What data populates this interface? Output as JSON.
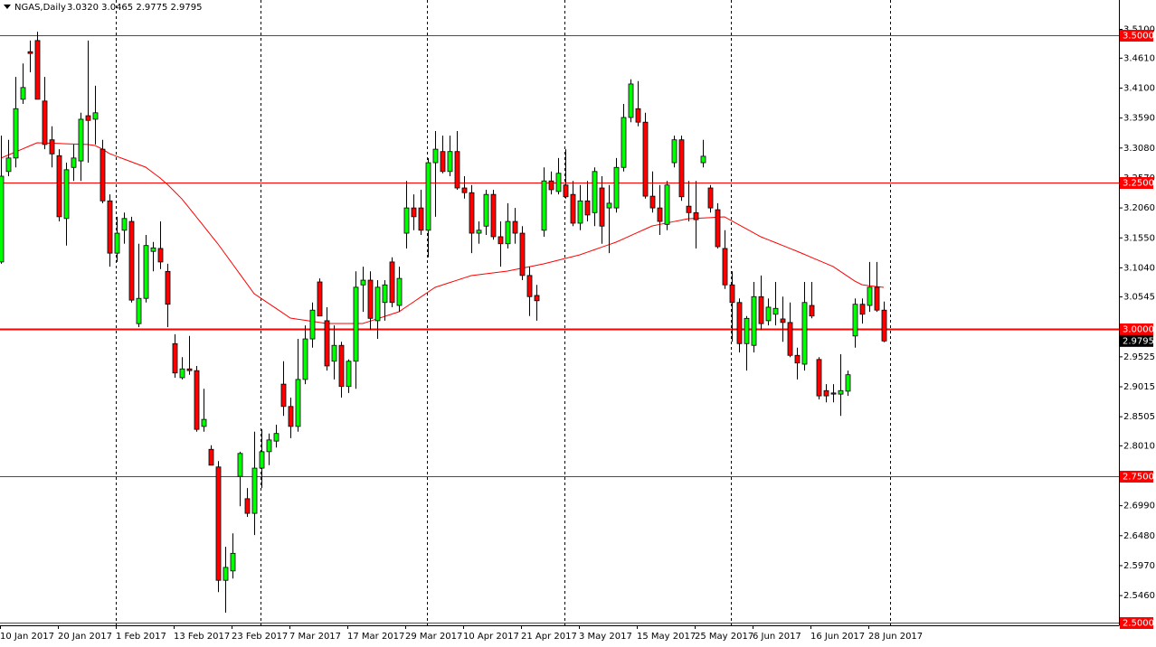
{
  "chart_data": {
    "type": "candlestick",
    "title": "NGAS,Daily",
    "ohlc_text": "3.0320 3.0465 2.9775 2.9795",
    "categories": [
      "10 Jan 2017",
      null,
      null,
      null,
      null,
      null,
      null,
      null,
      "20 Jan 2017",
      null,
      null,
      null,
      null,
      null,
      null,
      null,
      "1 Feb 2017",
      null,
      null,
      null,
      null,
      null,
      null,
      null,
      "13 Feb 2017",
      null,
      null,
      null,
      null,
      null,
      null,
      null,
      "23 Feb 2017",
      null,
      null,
      null,
      null,
      null,
      null,
      null,
      "7 Mar 2017",
      null,
      null,
      null,
      null,
      null,
      null,
      null,
      "17 Mar 2017",
      null,
      null,
      null,
      null,
      null,
      null,
      null,
      "29 Mar 2017",
      null,
      null,
      null,
      null,
      null,
      null,
      null,
      "10 Apr 2017",
      null,
      null,
      null,
      null,
      null,
      null,
      null,
      "21 Apr 2017",
      null,
      null,
      null,
      null,
      null,
      null,
      null,
      "3 May 2017",
      null,
      null,
      null,
      null,
      null,
      null,
      null,
      "15 May 2017",
      null,
      null,
      null,
      null,
      null,
      null,
      null,
      "25 May 2017",
      null,
      null,
      null,
      null,
      null,
      null,
      null,
      "6 Jun 2017",
      null,
      null,
      null,
      null,
      null,
      null,
      null,
      "16 Jun 2017",
      null,
      null,
      null,
      null,
      null,
      null,
      null,
      "28 Jun 2017",
      null,
      null
    ],
    "open": [
      3.114,
      3.268,
      3.291,
      3.391,
      3.472,
      3.491,
      3.388,
      3.322,
      3.295,
      3.188,
      3.275,
      3.286,
      3.363,
      3.357,
      3.306,
      3.218,
      3.129,
      3.168,
      3.183,
      3.009,
      3.052,
      3.132,
      3.137,
      3.098,
      2.975,
      2.917,
      2.932,
      2.929,
      2.834,
      2.795,
      2.765,
      2.572,
      2.588,
      2.749,
      2.711,
      2.686,
      2.763,
      2.791,
      2.809,
      2.906,
      2.868,
      2.834,
      2.914,
      2.983,
      3.08,
      3.014,
      2.945,
      2.972,
      2.902,
      2.945,
      3.075,
      3.083,
      3.014,
      3.045,
      3.114,
      3.04,
      3.163,
      3.206,
      3.206,
      3.168,
      3.283,
      3.302,
      3.268,
      3.302,
      3.24,
      3.232,
      3.163,
      3.175,
      3.229,
      3.157,
      3.145,
      3.183,
      3.163,
      3.091,
      3.057,
      3.168,
      3.252,
      3.234,
      3.245,
      3.229,
      3.18,
      3.218,
      3.198,
      3.24,
      3.206,
      3.206,
      3.275,
      3.36,
      3.375,
      3.352,
      3.226,
      3.206,
      3.178,
      3.283,
      3.322,
      3.209,
      3.198,
      3.283,
      3.24,
      3.203,
      3.137,
      3.075,
      3.045,
      2.975,
      2.972,
      3.055,
      3.014,
      3.025,
      3.017,
      3.011,
      2.955,
      2.94,
      3.04,
      2.948,
      2.895,
      2.891,
      2.889,
      2.894,
      2.988,
      3.042,
      3.04,
      3.071,
      3.032
    ],
    "high": [
      3.329,
      3.322,
      3.429,
      3.452,
      3.491,
      3.506,
      3.429,
      3.345,
      3.306,
      3.283,
      3.314,
      3.368,
      3.491,
      3.414,
      3.322,
      3.229,
      3.191,
      3.198,
      3.191,
      3.145,
      3.16,
      3.148,
      3.183,
      3.111,
      2.991,
      2.952,
      2.988,
      2.937,
      2.898,
      2.802,
      2.775,
      2.629,
      2.652,
      2.791,
      2.729,
      2.825,
      2.829,
      2.822,
      2.837,
      2.945,
      2.883,
      2.983,
      3.006,
      3.045,
      3.086,
      3.037,
      3.006,
      2.978,
      2.948,
      3.098,
      3.106,
      3.098,
      3.083,
      3.083,
      3.122,
      3.106,
      3.252,
      3.229,
      3.237,
      3.291,
      3.337,
      3.329,
      3.329,
      3.337,
      3.26,
      3.245,
      3.183,
      3.237,
      3.237,
      3.183,
      3.214,
      3.206,
      3.175,
      3.106,
      3.075,
      3.275,
      3.268,
      3.291,
      3.306,
      3.252,
      3.245,
      3.252,
      3.275,
      3.26,
      3.245,
      3.291,
      3.383,
      3.425,
      3.422,
      3.368,
      3.268,
      3.245,
      3.252,
      3.329,
      3.329,
      3.252,
      3.252,
      3.322,
      3.245,
      3.214,
      3.168,
      3.098,
      3.052,
      3.022,
      3.08,
      3.091,
      3.052,
      3.08,
      3.055,
      3.045,
      2.968,
      3.08,
      3.08,
      2.952,
      2.906,
      2.906,
      2.957,
      2.929,
      3.052,
      3.052,
      3.114,
      3.114,
      3.0465
    ],
    "low": [
      3.111,
      3.26,
      3.275,
      3.383,
      3.437,
      3.391,
      3.306,
      3.275,
      3.183,
      3.142,
      3.252,
      3.252,
      3.283,
      3.314,
      3.214,
      3.106,
      3.114,
      3.145,
      3.045,
      3.003,
      3.045,
      3.098,
      3.102,
      3.003,
      2.917,
      2.914,
      2.922,
      2.825,
      2.825,
      2.768,
      2.552,
      2.517,
      2.575,
      2.698,
      2.68,
      2.649,
      2.729,
      2.768,
      2.798,
      2.852,
      2.814,
      2.825,
      2.906,
      2.968,
      3.022,
      2.929,
      2.914,
      2.883,
      2.891,
      2.898,
      3.029,
      2.998,
      2.983,
      3.014,
      3.037,
      3.029,
      3.137,
      3.168,
      3.16,
      3.122,
      3.191,
      3.265,
      3.26,
      3.237,
      3.222,
      3.129,
      3.145,
      3.16,
      3.152,
      3.106,
      3.137,
      3.145,
      3.083,
      3.022,
      3.014,
      3.157,
      3.229,
      3.229,
      3.222,
      3.175,
      3.168,
      3.183,
      3.175,
      3.145,
      3.129,
      3.198,
      3.268,
      3.352,
      3.345,
      3.222,
      3.198,
      3.16,
      3.168,
      3.275,
      3.218,
      3.183,
      3.137,
      3.275,
      3.198,
      3.137,
      3.068,
      2.978,
      2.96,
      2.929,
      2.96,
      2.998,
      3.006,
      3.006,
      2.978,
      2.952,
      2.914,
      2.929,
      3.018,
      2.88,
      2.875,
      2.875,
      2.852,
      2.886,
      2.968,
      3.009,
      3.029,
      3.029,
      2.9775
    ],
    "close": [
      3.26,
      3.291,
      3.375,
      3.411,
      3.469,
      3.391,
      3.314,
      3.298,
      3.191,
      3.271,
      3.291,
      3.357,
      3.355,
      3.368,
      3.218,
      3.129,
      3.163,
      3.188,
      3.049,
      3.052,
      3.142,
      3.138,
      3.114,
      3.042,
      2.925,
      2.932,
      2.929,
      2.829,
      2.846,
      2.768,
      2.572,
      2.594,
      2.618,
      2.788,
      2.686,
      2.763,
      2.791,
      2.811,
      2.822,
      2.868,
      2.834,
      2.914,
      2.983,
      3.032,
      3.022,
      2.937,
      2.972,
      2.902,
      2.945,
      3.071,
      3.083,
      3.018,
      3.071,
      3.075,
      3.045,
      3.086,
      3.206,
      3.191,
      3.168,
      3.283,
      3.306,
      3.268,
      3.302,
      3.24,
      3.232,
      3.163,
      3.168,
      3.229,
      3.157,
      3.145,
      3.183,
      3.163,
      3.091,
      3.055,
      3.048,
      3.252,
      3.237,
      3.265,
      3.225,
      3.18,
      3.218,
      3.194,
      3.268,
      3.175,
      3.214,
      3.275,
      3.36,
      3.417,
      3.352,
      3.226,
      3.206,
      3.183,
      3.245,
      3.322,
      3.225,
      3.198,
      3.186,
      3.294,
      3.206,
      3.14,
      3.075,
      3.045,
      2.975,
      3.018,
      3.055,
      3.009,
      3.037,
      3.035,
      3.011,
      2.955,
      2.942,
      3.045,
      3.022,
      2.886,
      2.886,
      2.889,
      2.895,
      2.922,
      3.042,
      3.025,
      3.071,
      3.032,
      2.9795
    ],
    "up_color": "#00ff00",
    "down_color": "#ff0000",
    "line_series": [
      {
        "color": "#ff0000",
        "values": [
          3.2908,
          3.296,
          3.3012,
          3.3065,
          3.3117,
          3.3169,
          3.3165,
          3.3162,
          3.3157,
          3.3152,
          3.3149,
          3.3145,
          3.314,
          3.3123,
          3.3062,
          3.2985,
          3.2938,
          3.2892,
          3.2846,
          3.28,
          3.2754,
          3.2662,
          3.2569,
          3.2462,
          3.2338,
          3.2215,
          3.2062,
          3.1908,
          3.1754,
          3.16,
          3.1446,
          3.1277,
          3.1108,
          3.0938,
          3.0769,
          3.06,
          3.0517,
          3.0434,
          3.0351,
          3.0268,
          3.0185,
          3.0166,
          3.0148,
          3.0129,
          3.0111,
          3.0092,
          3.0092,
          3.0092,
          3.0092,
          3.0092,
          3.0092,
          3.0132,
          3.0172,
          3.0212,
          3.0252,
          3.0292,
          3.0375,
          3.0458,
          3.0542,
          3.0625,
          3.0708,
          3.0748,
          3.0788,
          3.0828,
          3.0868,
          3.0908,
          3.0923,
          3.0938,
          3.0954,
          3.0969,
          3.0985,
          3.1009,
          3.1034,
          3.1058,
          3.1083,
          3.1108,
          3.1138,
          3.1169,
          3.12,
          3.1231,
          3.1262,
          3.1305,
          3.1348,
          3.1391,
          3.1434,
          3.1477,
          3.1532,
          3.1588,
          3.1643,
          3.1698,
          3.1754,
          3.1778,
          3.1803,
          3.1828,
          3.1852,
          3.1877,
          3.1883,
          3.1889,
          3.1895,
          3.1902,
          3.1908,
          3.184,
          3.1772,
          3.1705,
          3.1637,
          3.1569,
          3.152,
          3.1471,
          3.1422,
          3.1372,
          3.1323,
          3.1271,
          3.1218,
          3.1166,
          3.1114,
          3.1062,
          3.098,
          3.0897,
          3.0815,
          3.0752,
          3.0735,
          3.0722,
          3.0708
        ]
      }
    ],
    "levels": [
      {
        "value": 3.5,
        "label": "3.5000"
      },
      {
        "value": 3.25,
        "label": "3.2500"
      },
      {
        "value": 3.0,
        "label": "3.0000"
      },
      {
        "value": 2.75,
        "label": "2.7500"
      },
      {
        "value": 2.5,
        "label": "2.5000"
      }
    ],
    "level_color": "#ff0000",
    "price_marker": {
      "value": 2.9795,
      "label": "2.9795"
    },
    "ylim": [
      2.4954,
      3.56
    ],
    "yticks": [
      {
        "value": 3.51,
        "label": "3.5100"
      },
      {
        "value": 3.461,
        "label": "3.4610"
      },
      {
        "value": 3.41,
        "label": "3.4100"
      },
      {
        "value": 3.359,
        "label": "3.3590"
      },
      {
        "value": 3.308,
        "label": "3.3080"
      },
      {
        "value": 3.257,
        "label": "3.2570"
      },
      {
        "value": 3.206,
        "label": "3.2060"
      },
      {
        "value": 3.155,
        "label": "3.1550"
      },
      {
        "value": 3.104,
        "label": "3.1040"
      },
      {
        "value": 3.0545,
        "label": "3.0545"
      },
      {
        "value": 2.9525,
        "label": "2.9525"
      },
      {
        "value": 2.9015,
        "label": "2.9015"
      },
      {
        "value": 2.8505,
        "label": "2.8505"
      },
      {
        "value": 2.801,
        "label": "2.8010"
      },
      {
        "value": 2.699,
        "label": "2.6990"
      },
      {
        "value": 2.648,
        "label": "2.6480"
      },
      {
        "value": 2.597,
        "label": "2.5970"
      },
      {
        "value": 2.546,
        "label": "2.5460"
      }
    ]
  }
}
